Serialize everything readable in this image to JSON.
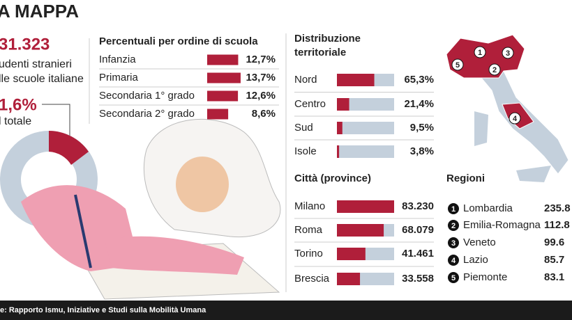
{
  "header": {
    "title": "A MAPPA"
  },
  "summary": {
    "count": "31.323",
    "count_line_1": "udenti stranieri",
    "count_line_2": "lle scuole italiane",
    "share": "1,6%",
    "share_line": "l totale"
  },
  "chart_data": [
    {
      "type": "bar",
      "title": "Percentuali per ordine di scuola",
      "categories": [
        "Infanzia",
        "Primaria",
        "Secondaria 1° grado",
        "Secondaria 2° grado"
      ],
      "values": [
        12.7,
        13.7,
        12.6,
        8.6
      ],
      "value_labels": [
        "12,7%",
        "13,7%",
        "12,6%",
        "8,6%"
      ],
      "color": "#b01f3a",
      "xlim": [
        0,
        14
      ]
    },
    {
      "type": "bar",
      "title": "Distribuzione territoriale",
      "categories": [
        "Nord",
        "Centro",
        "Sud",
        "Isole"
      ],
      "values": [
        65.3,
        21.4,
        9.5,
        3.8
      ],
      "value_labels": [
        "65,3%",
        "21,4%",
        "9,5%",
        "3,8%"
      ],
      "color": "#b01f3a",
      "track_color": "#c4d0dc",
      "xlim": [
        0,
        100
      ]
    },
    {
      "type": "bar",
      "title": "Città (province)",
      "categories": [
        "Milano",
        "Roma",
        "Torino",
        "Brescia"
      ],
      "values": [
        83230,
        68079,
        41461,
        33558
      ],
      "value_labels": [
        "83.230",
        "68.079",
        "41.461",
        "33.558"
      ],
      "color": "#b01f3a",
      "track_color": "#c4d0dc",
      "xlim": [
        0,
        83230
      ]
    }
  ],
  "regioni": {
    "title": "Regioni",
    "rows": [
      {
        "num": "1",
        "name": "Lombardia",
        "value": "235.8"
      },
      {
        "num": "2",
        "name": "Emilia-Romagna",
        "value": "112.8"
      },
      {
        "num": "3",
        "name": "Veneto",
        "value": "99.6"
      },
      {
        "num": "4",
        "name": "Lazio",
        "value": "85.7"
      },
      {
        "num": "5",
        "name": "Piemonte",
        "value": "83.1"
      }
    ]
  },
  "source": "e: Rapporto Ismu, Iniziative e Studi sulla Mobilità Umana"
}
